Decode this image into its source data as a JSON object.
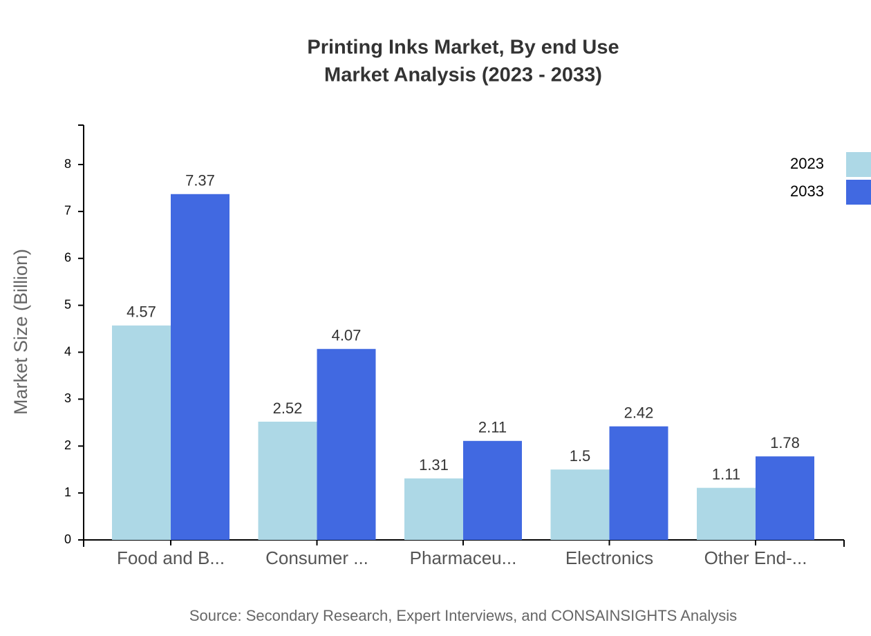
{
  "chart_data": {
    "type": "bar",
    "title": "Printing Inks Market, By end Use",
    "subtitle": "Market Analysis (2023 - 2033)",
    "y_label": "Market Size (Billion)",
    "source": "Source: Secondary Research, Expert Interviews, and CONSAINSIGHTS Analysis",
    "categories": [
      "Food and B...",
      "Consumer ...",
      "Pharmaceu...",
      "Electronics",
      "Other End-..."
    ],
    "series": [
      {
        "name": "2023",
        "color": "#add8e6",
        "values": [
          4.57,
          2.52,
          1.31,
          1.5,
          1.11
        ]
      },
      {
        "name": "2033",
        "color": "#4169e1",
        "values": [
          7.37,
          4.07,
          2.11,
          2.42,
          1.78
        ]
      }
    ],
    "ylim": [
      0,
      8.84
    ],
    "yticks": [
      0,
      1,
      2,
      3,
      4,
      5,
      6,
      7,
      8
    ],
    "legend": "top-right"
  }
}
